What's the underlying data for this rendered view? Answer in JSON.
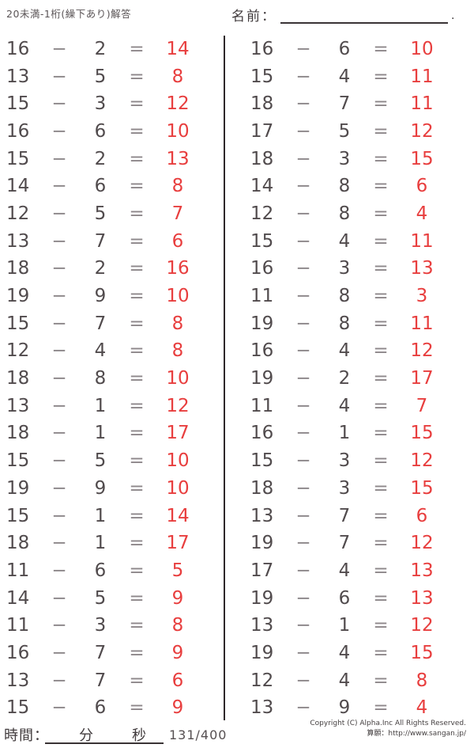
{
  "page": {
    "title": "20未満-1桁(繰下あり)解答",
    "name_label": "名前：",
    "name_period": ".",
    "footer": {
      "time_label": "時間：",
      "minutes_label": "分",
      "seconds_label": "秒",
      "page_number": "131/400",
      "copyright_line1": "Copyright (C) Alpha.Inc All Rights Reserved.",
      "copyright_line2": "算願：http://www.sangan.jp/"
    },
    "colors": {
      "answer_red": "#e83e3e",
      "number_dark": "#514b4d",
      "operator_gray": "#8d878a",
      "line_black": "#2e282a"
    }
  },
  "problems": {
    "operator": "−",
    "equals": "=",
    "left": [
      {
        "a": "16",
        "b": "2",
        "ans": "14"
      },
      {
        "a": "13",
        "b": "5",
        "ans": "8"
      },
      {
        "a": "15",
        "b": "3",
        "ans": "12"
      },
      {
        "a": "16",
        "b": "6",
        "ans": "10"
      },
      {
        "a": "15",
        "b": "2",
        "ans": "13"
      },
      {
        "a": "14",
        "b": "6",
        "ans": "8"
      },
      {
        "a": "12",
        "b": "5",
        "ans": "7"
      },
      {
        "a": "13",
        "b": "7",
        "ans": "6"
      },
      {
        "a": "18",
        "b": "2",
        "ans": "16"
      },
      {
        "a": "19",
        "b": "9",
        "ans": "10"
      },
      {
        "a": "15",
        "b": "7",
        "ans": "8"
      },
      {
        "a": "12",
        "b": "4",
        "ans": "8"
      },
      {
        "a": "18",
        "b": "8",
        "ans": "10"
      },
      {
        "a": "13",
        "b": "1",
        "ans": "12"
      },
      {
        "a": "18",
        "b": "1",
        "ans": "17"
      },
      {
        "a": "15",
        "b": "5",
        "ans": "10"
      },
      {
        "a": "19",
        "b": "9",
        "ans": "10"
      },
      {
        "a": "15",
        "b": "1",
        "ans": "14"
      },
      {
        "a": "18",
        "b": "1",
        "ans": "17"
      },
      {
        "a": "11",
        "b": "6",
        "ans": "5"
      },
      {
        "a": "14",
        "b": "5",
        "ans": "9"
      },
      {
        "a": "11",
        "b": "3",
        "ans": "8"
      },
      {
        "a": "16",
        "b": "7",
        "ans": "9"
      },
      {
        "a": "13",
        "b": "7",
        "ans": "6"
      },
      {
        "a": "15",
        "b": "6",
        "ans": "9"
      }
    ],
    "right": [
      {
        "a": "16",
        "b": "6",
        "ans": "10"
      },
      {
        "a": "15",
        "b": "4",
        "ans": "11"
      },
      {
        "a": "18",
        "b": "7",
        "ans": "11"
      },
      {
        "a": "17",
        "b": "5",
        "ans": "12"
      },
      {
        "a": "18",
        "b": "3",
        "ans": "15"
      },
      {
        "a": "14",
        "b": "8",
        "ans": "6"
      },
      {
        "a": "12",
        "b": "8",
        "ans": "4"
      },
      {
        "a": "15",
        "b": "4",
        "ans": "11"
      },
      {
        "a": "16",
        "b": "3",
        "ans": "13"
      },
      {
        "a": "11",
        "b": "8",
        "ans": "3"
      },
      {
        "a": "19",
        "b": "8",
        "ans": "11"
      },
      {
        "a": "16",
        "b": "4",
        "ans": "12"
      },
      {
        "a": "19",
        "b": "2",
        "ans": "17"
      },
      {
        "a": "11",
        "b": "4",
        "ans": "7"
      },
      {
        "a": "16",
        "b": "1",
        "ans": "15"
      },
      {
        "a": "15",
        "b": "3",
        "ans": "12"
      },
      {
        "a": "18",
        "b": "3",
        "ans": "15"
      },
      {
        "a": "13",
        "b": "7",
        "ans": "6"
      },
      {
        "a": "19",
        "b": "7",
        "ans": "12"
      },
      {
        "a": "17",
        "b": "4",
        "ans": "13"
      },
      {
        "a": "19",
        "b": "6",
        "ans": "13"
      },
      {
        "a": "13",
        "b": "1",
        "ans": "12"
      },
      {
        "a": "19",
        "b": "4",
        "ans": "15"
      },
      {
        "a": "12",
        "b": "4",
        "ans": "8"
      },
      {
        "a": "13",
        "b": "9",
        "ans": "4"
      }
    ]
  }
}
